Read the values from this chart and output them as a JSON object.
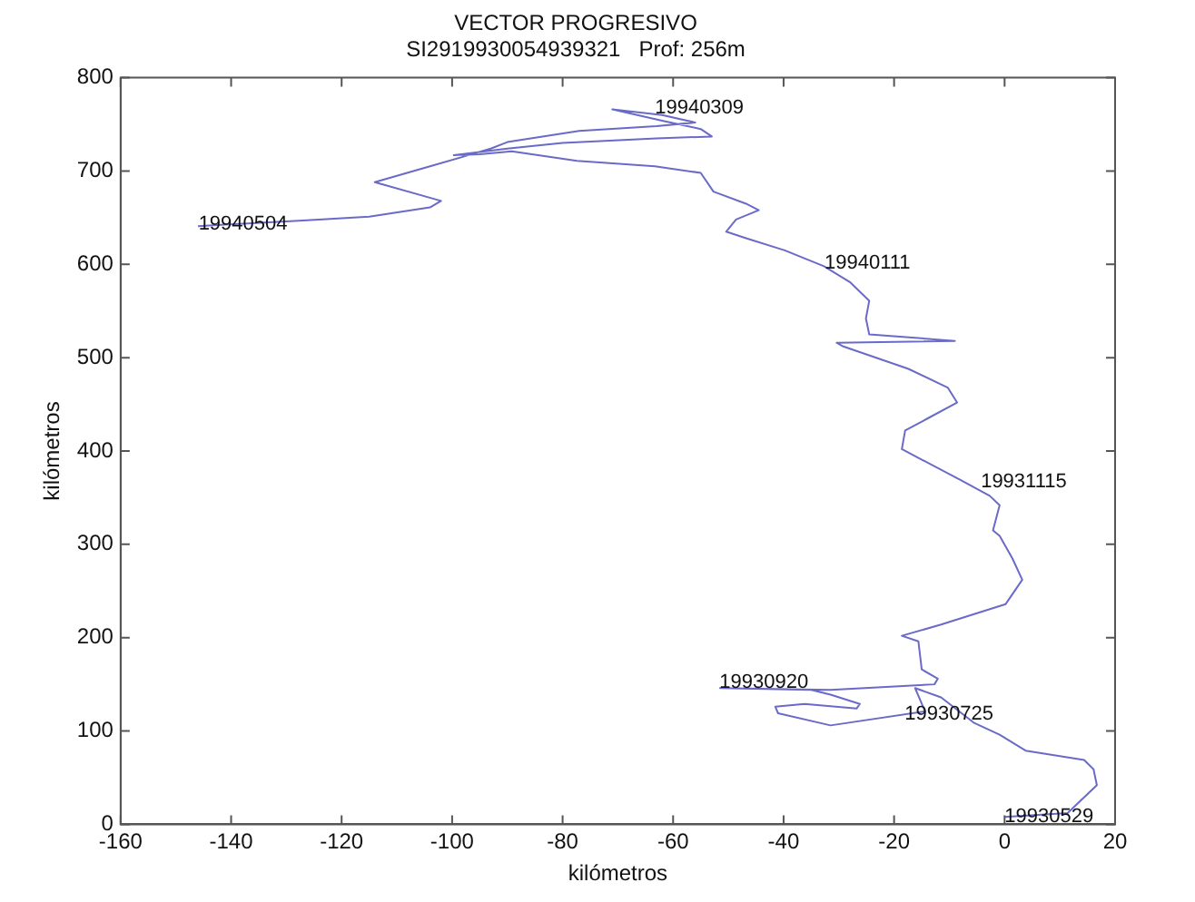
{
  "chart_data": {
    "type": "line",
    "title": "VECTOR PROGRESIVO",
    "subtitle": "SI2919930054939321   Prof: 256m",
    "xlabel": "kilómetros",
    "ylabel": "kilómetros",
    "xlim": [
      -160,
      20
    ],
    "xticks": [
      -160,
      -140,
      -120,
      -100,
      -80,
      -60,
      -40,
      -20,
      0,
      20
    ],
    "ylim": [
      0,
      800
    ],
    "yticks": [
      0,
      100,
      200,
      300,
      400,
      500,
      600,
      700,
      800
    ],
    "grid": false,
    "legend": false,
    "marker": "none",
    "line_style": "solid",
    "series": [
      {
        "color": "#6a6ac8",
        "x": [
          0,
          11.4,
          16.7,
          16.1,
          14.4,
          3.8,
          -0.9,
          -5.6,
          -11.5,
          -16.2,
          -14.4,
          -31.5,
          -41,
          -41.5,
          -36.2,
          -26.8,
          -26.2,
          -31.5,
          -35,
          -51.5,
          -31.5,
          -12.7,
          -12.1,
          -15,
          -15.6,
          -18.6,
          -11.5,
          0.2,
          3.2,
          1.4,
          -0.9,
          -2.1,
          -0.9,
          -2.7,
          -8,
          -18.6,
          -18,
          -13.9,
          -8.6,
          -10.3,
          -17.4,
          -29.2,
          -30.4,
          -9,
          -24.5,
          -25.1,
          -24.5,
          -28,
          -32.7,
          -39.8,
          -46.8,
          -50.4,
          -48.6,
          -44.5,
          -46.8,
          -52.7,
          -55,
          -63.3,
          -77.4,
          -89.2,
          -95,
          -99.7,
          -90,
          -80,
          -63,
          -53,
          -55,
          -62,
          -71,
          -62,
          -56,
          -63,
          -77,
          -90,
          -93,
          -104,
          -114,
          -102,
          -104,
          -115,
          -127,
          -146
        ],
        "values": [
          8,
          12,
          42,
          59,
          69,
          79,
          96,
          109,
          136,
          146,
          121,
          106,
          119,
          126,
          129,
          124,
          129,
          139,
          144,
          146,
          144,
          150,
          156,
          166,
          196,
          202,
          214,
          236,
          262,
          285,
          309,
          315,
          342,
          352,
          369,
          402,
          422,
          435,
          452,
          468,
          488,
          512,
          516,
          518,
          525,
          542,
          561,
          581,
          598,
          615,
          628,
          635,
          648,
          658,
          665,
          678,
          698,
          705,
          711,
          721,
          718,
          717,
          724,
          730,
          735,
          737,
          745,
          754,
          766,
          760,
          752,
          748,
          743,
          731,
          724,
          705,
          688,
          668,
          661,
          651,
          647,
          641
        ]
      }
    ],
    "annotations": [
      {
        "text": "19930529",
        "x": 0,
        "y": 8
      },
      {
        "text": "19930725",
        "x": -18.1,
        "y": 118
      },
      {
        "text": "19930920",
        "x": -51.6,
        "y": 152
      },
      {
        "text": "19931115",
        "x": -4.3,
        "y": 367
      },
      {
        "text": "19940111",
        "x": -32.6,
        "y": 601
      },
      {
        "text": "19940309",
        "x": -63.3,
        "y": 768
      },
      {
        "text": "19940504",
        "x": -145.9,
        "y": 643
      }
    ]
  }
}
